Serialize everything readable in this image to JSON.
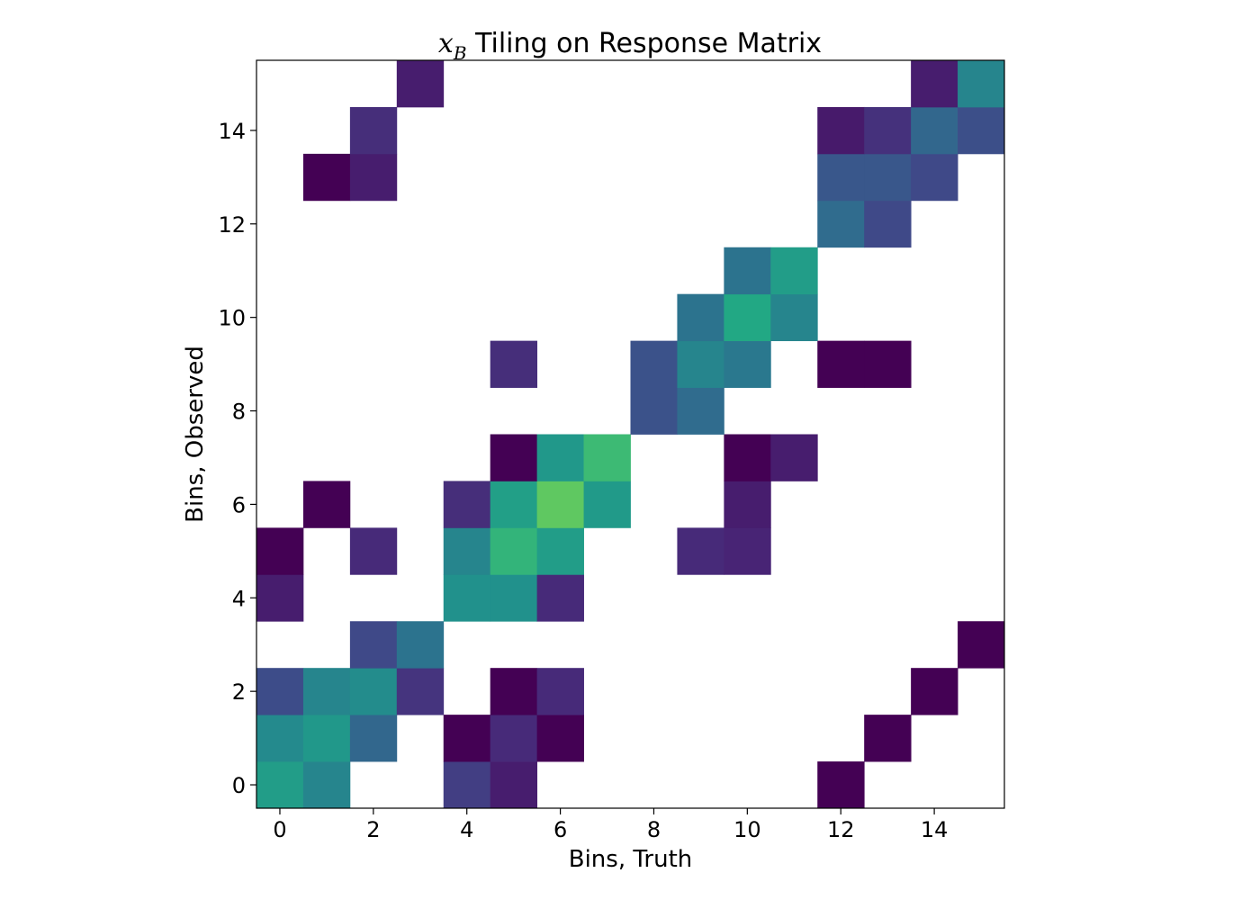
{
  "chart_data": {
    "type": "heatmap",
    "title": {
      "variable": "x",
      "subscript": "B",
      "text": " Tiling on Response Matrix"
    },
    "xlabel": "Bins, Truth",
    "ylabel": "Bins, Observed",
    "xlim": [
      -0.5,
      15.5
    ],
    "ylim": [
      -0.5,
      15.5
    ],
    "xticks": [
      "0",
      "2",
      "4",
      "6",
      "8",
      "10",
      "12",
      "14"
    ],
    "yticks": [
      "0",
      "2",
      "4",
      "6",
      "8",
      "10",
      "12",
      "14"
    ],
    "colormap": "viridis",
    "value_range": [
      0,
      1
    ],
    "grid": false,
    "cells": [
      {
        "x": 0,
        "y": 0,
        "v": 0.55
      },
      {
        "x": 1,
        "y": 0,
        "v": 0.45
      },
      {
        "x": 4,
        "y": 0,
        "v": 0.18
      },
      {
        "x": 5,
        "y": 0,
        "v": 0.08
      },
      {
        "x": 12,
        "y": 0,
        "v": 0.0
      },
      {
        "x": 0,
        "y": 1,
        "v": 0.47
      },
      {
        "x": 1,
        "y": 1,
        "v": 0.53
      },
      {
        "x": 2,
        "y": 1,
        "v": 0.33
      },
      {
        "x": 4,
        "y": 1,
        "v": 0.0
      },
      {
        "x": 5,
        "y": 1,
        "v": 0.12
      },
      {
        "x": 6,
        "y": 1,
        "v": 0.0
      },
      {
        "x": 13,
        "y": 1,
        "v": 0.0
      },
      {
        "x": 0,
        "y": 2,
        "v": 0.23
      },
      {
        "x": 1,
        "y": 2,
        "v": 0.45
      },
      {
        "x": 2,
        "y": 2,
        "v": 0.48
      },
      {
        "x": 3,
        "y": 2,
        "v": 0.15
      },
      {
        "x": 5,
        "y": 2,
        "v": 0.0
      },
      {
        "x": 6,
        "y": 2,
        "v": 0.12
      },
      {
        "x": 14,
        "y": 2,
        "v": 0.0
      },
      {
        "x": 2,
        "y": 3,
        "v": 0.22
      },
      {
        "x": 3,
        "y": 3,
        "v": 0.38
      },
      {
        "x": 15,
        "y": 3,
        "v": 0.0
      },
      {
        "x": 0,
        "y": 4,
        "v": 0.08
      },
      {
        "x": 4,
        "y": 4,
        "v": 0.5
      },
      {
        "x": 5,
        "y": 4,
        "v": 0.5
      },
      {
        "x": 6,
        "y": 4,
        "v": 0.12
      },
      {
        "x": 0,
        "y": 5,
        "v": 0.0
      },
      {
        "x": 2,
        "y": 5,
        "v": 0.12
      },
      {
        "x": 4,
        "y": 5,
        "v": 0.45
      },
      {
        "x": 5,
        "y": 5,
        "v": 0.65
      },
      {
        "x": 6,
        "y": 5,
        "v": 0.55
      },
      {
        "x": 9,
        "y": 5,
        "v": 0.12
      },
      {
        "x": 10,
        "y": 5,
        "v": 0.1
      },
      {
        "x": 1,
        "y": 6,
        "v": 0.0
      },
      {
        "x": 4,
        "y": 6,
        "v": 0.13
      },
      {
        "x": 5,
        "y": 6,
        "v": 0.56
      },
      {
        "x": 6,
        "y": 6,
        "v": 0.75
      },
      {
        "x": 7,
        "y": 6,
        "v": 0.54
      },
      {
        "x": 10,
        "y": 6,
        "v": 0.08
      },
      {
        "x": 5,
        "y": 7,
        "v": 0.0
      },
      {
        "x": 6,
        "y": 7,
        "v": 0.53
      },
      {
        "x": 7,
        "y": 7,
        "v": 0.68
      },
      {
        "x": 10,
        "y": 7,
        "v": 0.0
      },
      {
        "x": 11,
        "y": 7,
        "v": 0.08
      },
      {
        "x": 8,
        "y": 8,
        "v": 0.25
      },
      {
        "x": 9,
        "y": 8,
        "v": 0.35
      },
      {
        "x": 5,
        "y": 9,
        "v": 0.13
      },
      {
        "x": 8,
        "y": 9,
        "v": 0.25
      },
      {
        "x": 9,
        "y": 9,
        "v": 0.45
      },
      {
        "x": 10,
        "y": 9,
        "v": 0.4
      },
      {
        "x": 12,
        "y": 9,
        "v": 0.0
      },
      {
        "x": 13,
        "y": 9,
        "v": 0.0
      },
      {
        "x": 9,
        "y": 10,
        "v": 0.38
      },
      {
        "x": 10,
        "y": 10,
        "v": 0.6
      },
      {
        "x": 11,
        "y": 10,
        "v": 0.45
      },
      {
        "x": 10,
        "y": 11,
        "v": 0.38
      },
      {
        "x": 11,
        "y": 11,
        "v": 0.55
      },
      {
        "x": 12,
        "y": 12,
        "v": 0.35
      },
      {
        "x": 13,
        "y": 12,
        "v": 0.22
      },
      {
        "x": 1,
        "y": 13,
        "v": 0.0
      },
      {
        "x": 2,
        "y": 13,
        "v": 0.08
      },
      {
        "x": 12,
        "y": 13,
        "v": 0.27
      },
      {
        "x": 13,
        "y": 13,
        "v": 0.27
      },
      {
        "x": 14,
        "y": 13,
        "v": 0.22
      },
      {
        "x": 2,
        "y": 14,
        "v": 0.13
      },
      {
        "x": 12,
        "y": 14,
        "v": 0.07
      },
      {
        "x": 13,
        "y": 14,
        "v": 0.14
      },
      {
        "x": 14,
        "y": 14,
        "v": 0.33
      },
      {
        "x": 15,
        "y": 14,
        "v": 0.24
      },
      {
        "x": 3,
        "y": 15,
        "v": 0.08
      },
      {
        "x": 14,
        "y": 15,
        "v": 0.08
      },
      {
        "x": 15,
        "y": 15,
        "v": 0.45
      }
    ]
  }
}
